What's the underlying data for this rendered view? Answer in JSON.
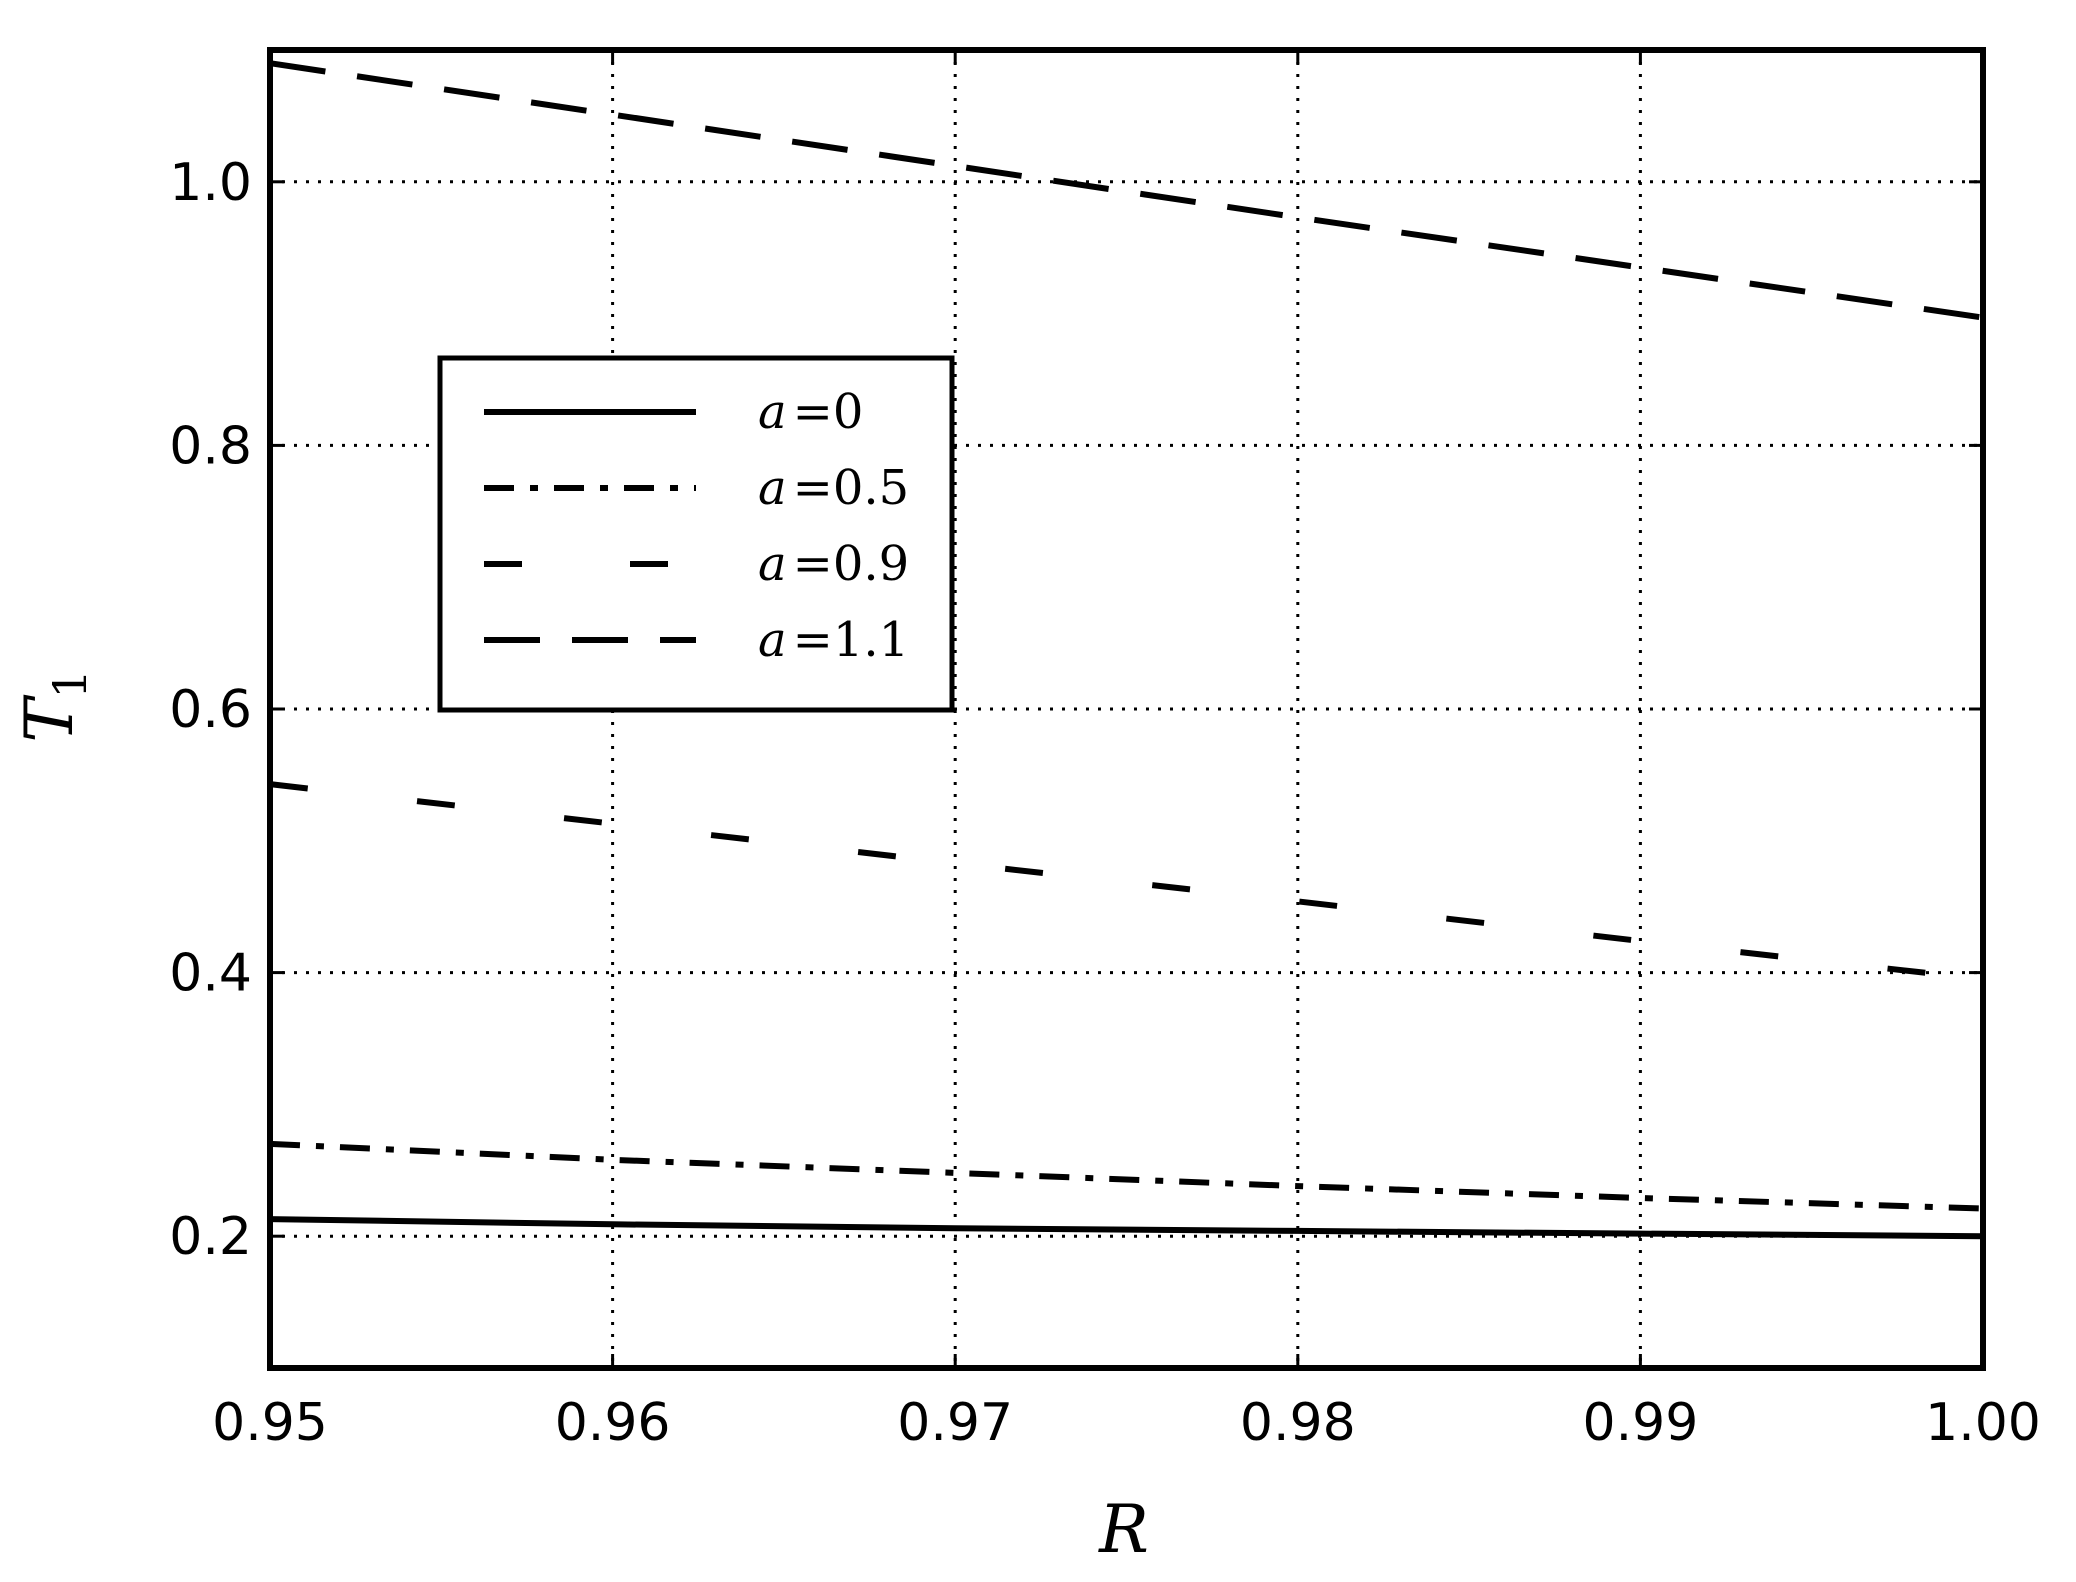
{
  "chart_data": {
    "type": "line",
    "xlabel": "R",
    "ylabel": "T",
    "ylabel_subscript": "1",
    "xlim": [
      0.95,
      1.0
    ],
    "ylim": [
      0.1,
      1.1
    ],
    "xticks": [
      0.95,
      0.96,
      0.97,
      0.98,
      0.99,
      1.0
    ],
    "xtick_labels": [
      "0.95",
      "0.96",
      "0.97",
      "0.98",
      "0.99",
      "1.00"
    ],
    "yticks": [
      0.2,
      0.4,
      0.6,
      0.8,
      1.0
    ],
    "ytick_labels": [
      "0.2",
      "0.4",
      "0.6",
      "0.8",
      "1.0"
    ],
    "grid": true,
    "grid_style": "dotted",
    "legend_position": "upper-left",
    "x": [
      0.95,
      0.96,
      0.97,
      0.98,
      0.99,
      1.0
    ],
    "series": [
      {
        "name": "a=0",
        "var": "a",
        "value_label": "0",
        "style": "solid",
        "color": "#000000",
        "values": [
          0.213,
          0.209,
          0.206,
          0.204,
          0.202,
          0.2
        ]
      },
      {
        "name": "a=0.5",
        "var": "a",
        "value_label": "0.5",
        "style": "dashdot",
        "color": "#000000",
        "values": [
          0.27,
          0.258,
          0.248,
          0.238,
          0.229,
          0.221
        ]
      },
      {
        "name": "a=0.9",
        "var": "a",
        "value_label": "0.9",
        "style": "longdash",
        "color": "#000000",
        "values": [
          0.543,
          0.513,
          0.483,
          0.454,
          0.424,
          0.395
        ]
      },
      {
        "name": "a=1.1",
        "var": "a",
        "value_label": "1.1",
        "style": "dashed",
        "color": "#000000",
        "values": [
          1.09,
          1.051,
          1.012,
          0.973,
          0.935,
          0.897
        ]
      }
    ]
  }
}
